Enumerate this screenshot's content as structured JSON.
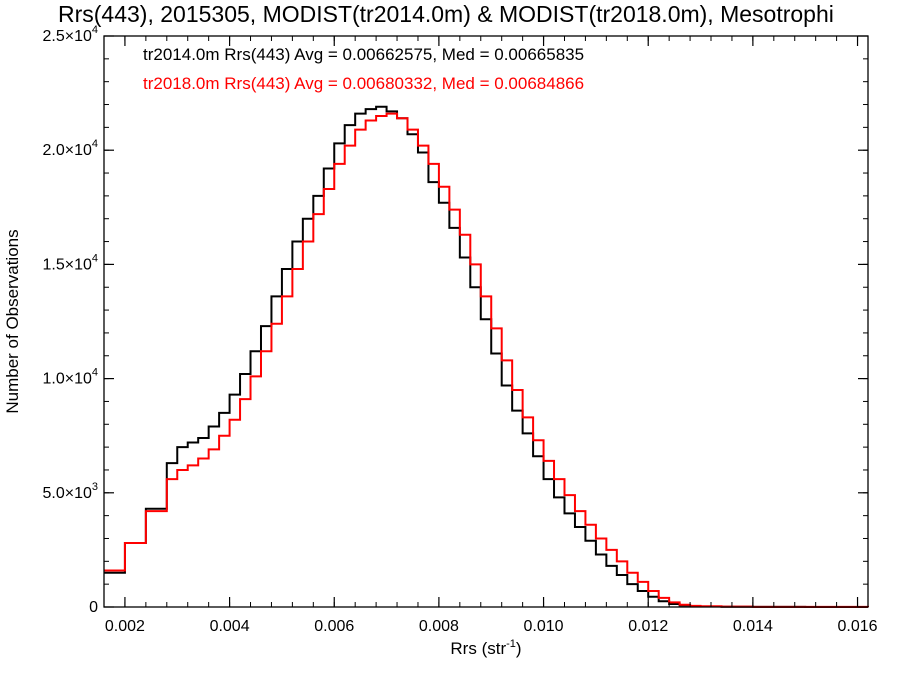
{
  "title": "Rrs(443), 2015305, MODIST(tr2014.0m) & MODIST(tr2018.0m), Mesotrophi",
  "chart_data": {
    "type": "line",
    "step": true,
    "xlabel": "Rrs (str",
    "xlabel_sup": "-1",
    "xlabel_close": ")",
    "ylabel": "Number of Observations",
    "xlim": [
      0.0016,
      0.0162
    ],
    "ylim": [
      0,
      25000
    ],
    "x_ticks": [
      {
        "value": 0.002,
        "label": "0.002"
      },
      {
        "value": 0.004,
        "label": "0.004"
      },
      {
        "value": 0.006,
        "label": "0.006"
      },
      {
        "value": 0.008,
        "label": "0.008"
      },
      {
        "value": 0.01,
        "label": "0.010"
      },
      {
        "value": 0.012,
        "label": "0.012"
      },
      {
        "value": 0.014,
        "label": "0.014"
      },
      {
        "value": 0.016,
        "label": "0.016"
      }
    ],
    "y_ticks": [
      {
        "value": 0,
        "mant": "0",
        "exp": ""
      },
      {
        "value": 5000,
        "mant": "5.0×10",
        "exp": "3"
      },
      {
        "value": 10000,
        "mant": "1.0×10",
        "exp": "4"
      },
      {
        "value": 15000,
        "mant": "1.5×10",
        "exp": "4"
      },
      {
        "value": 20000,
        "mant": "2.0×10",
        "exp": "4"
      },
      {
        "value": 25000,
        "mant": "2.5×10",
        "exp": "4"
      }
    ],
    "grid": false,
    "series": [
      {
        "name": "tr2014.0m",
        "color": "#000000",
        "stats_label": "tr2014.0m Rrs(443) Avg = 0.00662575, Med = 0.00665835",
        "x": [
          0.0016,
          0.002,
          0.0024,
          0.0028,
          0.003,
          0.0032,
          0.0034,
          0.0036,
          0.0038,
          0.004,
          0.0042,
          0.0044,
          0.0046,
          0.0048,
          0.005,
          0.0052,
          0.0054,
          0.0056,
          0.0058,
          0.006,
          0.0062,
          0.0064,
          0.0066,
          0.0068,
          0.007,
          0.0072,
          0.0074,
          0.0076,
          0.0078,
          0.008,
          0.0082,
          0.0084,
          0.0086,
          0.0088,
          0.009,
          0.0092,
          0.0094,
          0.0096,
          0.0098,
          0.01,
          0.0102,
          0.0104,
          0.0106,
          0.0108,
          0.011,
          0.0112,
          0.0114,
          0.0116,
          0.0118,
          0.012,
          0.0122,
          0.0124,
          0.0126,
          0.0128,
          0.013,
          0.0134,
          0.014,
          0.015,
          0.0162
        ],
        "y": [
          1500,
          2800,
          4300,
          6300,
          7000,
          7200,
          7400,
          7900,
          8500,
          9300,
          10200,
          11200,
          12300,
          13600,
          14800,
          16000,
          17000,
          18000,
          19200,
          20300,
          21100,
          21600,
          21800,
          21900,
          21700,
          21400,
          20700,
          19900,
          18600,
          17700,
          16600,
          15300,
          14000,
          12600,
          11100,
          9700,
          8600,
          7600,
          6600,
          5600,
          4800,
          4100,
          3500,
          2900,
          2300,
          1800,
          1400,
          1000,
          700,
          450,
          250,
          130,
          70,
          40,
          20,
          10,
          5,
          2,
          0
        ]
      },
      {
        "name": "tr2018.0m",
        "color": "#ff0000",
        "stats_label": "tr2018.0m Rrs(443) Avg = 0.00680332, Med = 0.00684866",
        "x": [
          0.0016,
          0.002,
          0.0024,
          0.0028,
          0.003,
          0.0032,
          0.0034,
          0.0036,
          0.0038,
          0.004,
          0.0042,
          0.0044,
          0.0046,
          0.0048,
          0.005,
          0.0052,
          0.0054,
          0.0056,
          0.0058,
          0.006,
          0.0062,
          0.0064,
          0.0066,
          0.0068,
          0.007,
          0.0072,
          0.0074,
          0.0076,
          0.0078,
          0.008,
          0.0082,
          0.0084,
          0.0086,
          0.0088,
          0.009,
          0.0092,
          0.0094,
          0.0096,
          0.0098,
          0.01,
          0.0102,
          0.0104,
          0.0106,
          0.0108,
          0.011,
          0.0112,
          0.0114,
          0.0116,
          0.0118,
          0.012,
          0.0122,
          0.0124,
          0.0126,
          0.0128,
          0.013,
          0.0134,
          0.014,
          0.015,
          0.0162
        ],
        "y": [
          1600,
          2800,
          4200,
          5600,
          6000,
          6200,
          6500,
          6900,
          7500,
          8200,
          9100,
          10100,
          11200,
          12400,
          13600,
          14800,
          16000,
          17200,
          18300,
          19400,
          20200,
          20900,
          21300,
          21500,
          21600,
          21400,
          20900,
          20200,
          19400,
          18400,
          17400,
          16300,
          15000,
          13600,
          12200,
          10800,
          9500,
          8300,
          7300,
          6400,
          5600,
          4900,
          4200,
          3600,
          3000,
          2500,
          2000,
          1500,
          1100,
          700,
          400,
          200,
          100,
          50,
          30,
          15,
          8,
          3,
          0
        ]
      }
    ]
  }
}
